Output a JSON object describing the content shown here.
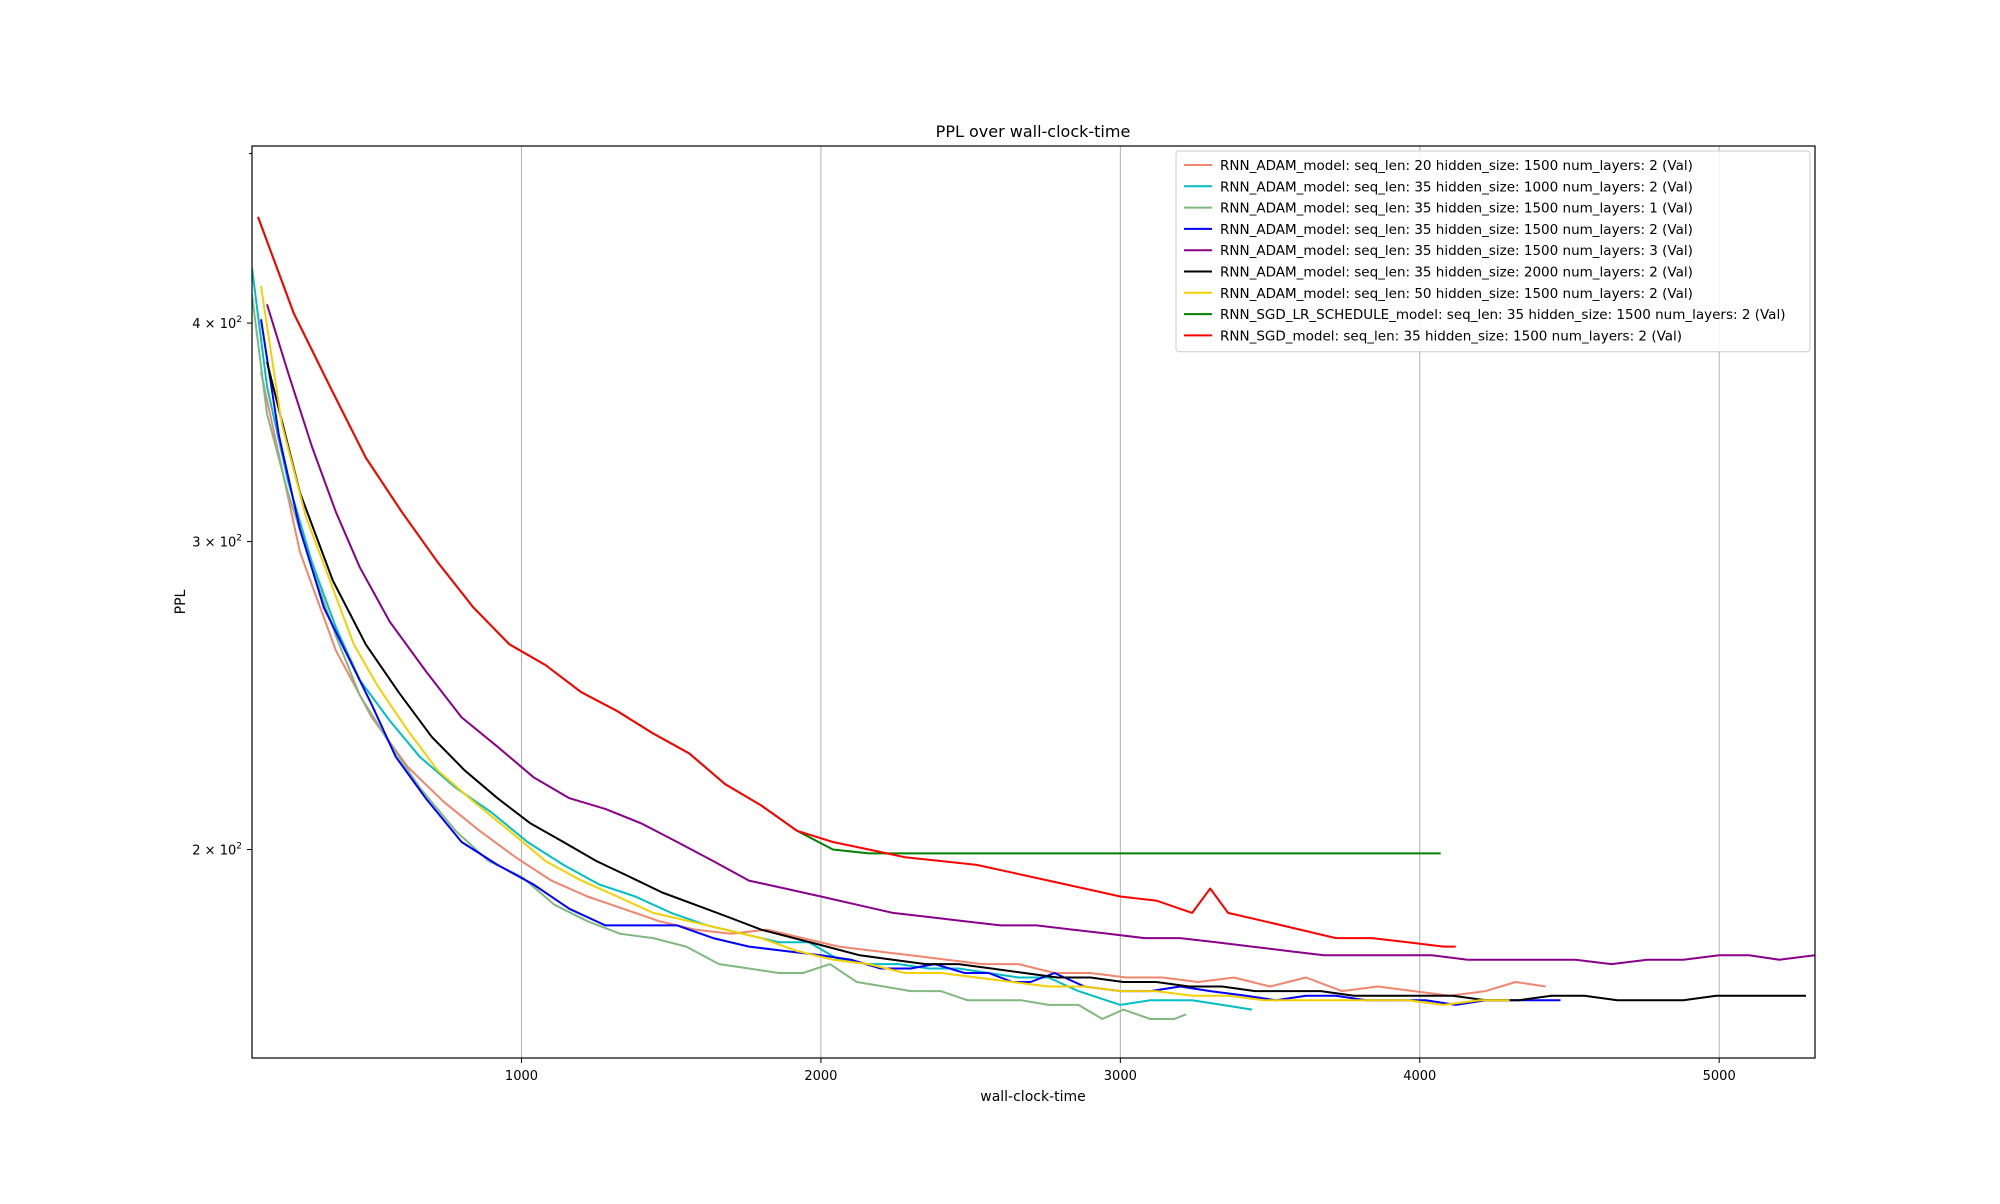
{
  "chart_data": {
    "type": "line",
    "title": "PPL over wall-clock-time",
    "xlabel": "wall-clock-time",
    "ylabel": "PPL",
    "xlim": [
      100,
      5320
    ],
    "ylim": [
      152,
      505
    ],
    "yscale": "log",
    "grid": "x-major vertical lines",
    "legend_position": "top-right",
    "x_ticks": [
      1000,
      2000,
      3000,
      4000,
      5000
    ],
    "x_tick_labels": [
      "1000",
      "2000",
      "3000",
      "4000",
      "5000"
    ],
    "y_ticks": [
      200,
      300,
      400
    ],
    "y_tick_bases": [
      "2 × 10",
      "3 × 10",
      "4 × 10"
    ],
    "y_tick_exponents": [
      "2",
      "2",
      "2"
    ],
    "series": [
      {
        "name": "RNN_ADAM_model: seq_len: 20 hidden_size: 1500 num_layers: 2 (Val)",
        "color": "#f0866e",
        "x": [
          130,
          260,
          380,
          500,
          620,
          740,
          860,
          980,
          1100,
          1220,
          1340,
          1460,
          1580,
          1700,
          1820,
          1940,
          2060,
          2180,
          2300,
          2420,
          2540,
          2660,
          2780,
          2900,
          3020,
          3140,
          3260,
          3380,
          3500,
          3620,
          3740,
          3860,
          3980,
          4100,
          4220,
          4320,
          4420
        ],
        "y": [
          375,
          296,
          260,
          238,
          223,
          213,
          205,
          198,
          192,
          188,
          185,
          182,
          180,
          179,
          180,
          178,
          176,
          175,
          174,
          173,
          172,
          172,
          170,
          170,
          169,
          169,
          168,
          169,
          167,
          169,
          166,
          167,
          166,
          165,
          166,
          168,
          167
        ]
      },
      {
        "name": "RNN_ADAM_model: seq_len: 35 hidden_size: 1000 num_layers: 2 (Val)",
        "color": "#00bfc4",
        "x": [
          100,
          150,
          220,
          300,
          380,
          460,
          560,
          660,
          780,
          900,
          1020,
          1140,
          1260,
          1380,
          1500,
          1620,
          1740,
          1860,
          1960,
          2060,
          2160,
          2260,
          2360,
          2460,
          2560,
          2660,
          2760,
          2860,
          3000,
          3100,
          3240,
          3340,
          3440
        ],
        "y": [
          430,
          368,
          325,
          292,
          268,
          250,
          237,
          226,
          217,
          210,
          202,
          196,
          191,
          188,
          184,
          181,
          179,
          177,
          177,
          173,
          172,
          172,
          171,
          171,
          170,
          169,
          169,
          166,
          163,
          164,
          164,
          163,
          162
        ]
      },
      {
        "name": "RNN_ADAM_model: seq_len: 35 hidden_size: 1500 num_layers: 1 (Val)",
        "color": "#80b980",
        "x": [
          100,
          150,
          220,
          300,
          380,
          460,
          560,
          660,
          780,
          890,
          1000,
          1110,
          1220,
          1330,
          1440,
          1550,
          1660,
          1760,
          1860,
          1940,
          2030,
          2120,
          2210,
          2300,
          2400,
          2490,
          2580,
          2670,
          2760,
          2860,
          2940,
          3010,
          3100,
          3180,
          3220
        ],
        "y": [
          415,
          355,
          320,
          290,
          265,
          245,
          230,
          217,
          205,
          197,
          193,
          186,
          182,
          179,
          178,
          176,
          172,
          171,
          170,
          170,
          172,
          168,
          167,
          166,
          166,
          164,
          164,
          164,
          163,
          163,
          160,
          162,
          160,
          160,
          161
        ]
      },
      {
        "name": "RNN_ADAM_model: seq_len: 35 hidden_size: 1500 num_layers: 2 (Val)",
        "color": "#0000ff",
        "x": [
          130,
          190,
          260,
          340,
          420,
          500,
          580,
          680,
          800,
          920,
          1040,
          1160,
          1280,
          1400,
          1520,
          1640,
          1760,
          1880,
          2000,
          2100,
          2200,
          2300,
          2380,
          2480,
          2560,
          2640,
          2700,
          2780,
          2880,
          3000,
          3100,
          3200,
          3300,
          3420,
          3520,
          3620,
          3720,
          3820,
          3920,
          4020,
          4120,
          4220,
          4320,
          4470
        ],
        "y": [
          402,
          345,
          305,
          275,
          258,
          242,
          226,
          214,
          202,
          196,
          191,
          185,
          181,
          181,
          181,
          178,
          176,
          175,
          174,
          173,
          171,
          171,
          172,
          170,
          170,
          168,
          168,
          170,
          167,
          166,
          166,
          167,
          166,
          165,
          164,
          165,
          165,
          164,
          164,
          164,
          163,
          164,
          164,
          164
        ]
      },
      {
        "name": "RNN_ADAM_model: seq_len: 35 hidden_size: 1500 num_layers: 3 (Val)",
        "color": "#8b008b",
        "x": [
          150,
          220,
          300,
          380,
          460,
          560,
          680,
          800,
          920,
          1040,
          1160,
          1280,
          1400,
          1520,
          1640,
          1760,
          1880,
          2000,
          2120,
          2240,
          2360,
          2480,
          2600,
          2720,
          2840,
          2960,
          3080,
          3200,
          3320,
          3440,
          3560,
          3680,
          3800,
          3920,
          4040,
          4160,
          4280,
          4400,
          4520,
          4640,
          4760,
          4880,
          5000,
          5100,
          5200,
          5320
        ],
        "y": [
          410,
          375,
          340,
          312,
          290,
          270,
          253,
          238,
          229,
          220,
          214,
          211,
          207,
          202,
          197,
          192,
          190,
          188,
          186,
          184,
          183,
          182,
          181,
          181,
          180,
          179,
          178,
          178,
          177,
          176,
          175,
          174,
          174,
          174,
          174,
          173,
          173,
          173,
          173,
          172,
          173,
          173,
          174,
          174,
          173,
          174
        ]
      },
      {
        "name": "RNN_ADAM_model: seq_len: 35 hidden_size: 2000 num_layers: 2 (Val)",
        "color": "#000000",
        "x": [
          150,
          260,
          370,
          480,
          590,
          700,
          810,
          920,
          1030,
          1140,
          1250,
          1360,
          1470,
          1580,
          1690,
          1800,
          1910,
          2020,
          2130,
          2240,
          2350,
          2460,
          2570,
          2680,
          2790,
          2900,
          3010,
          3120,
          3230,
          3340,
          3450,
          3560,
          3670,
          3780,
          3890,
          4000,
          4110,
          4220,
          4330,
          4440,
          4550,
          4660,
          4770,
          4880,
          4990,
          5100,
          5200,
          5290
        ],
        "y": [
          380,
          320,
          285,
          262,
          246,
          232,
          222,
          214,
          207,
          202,
          197,
          193,
          189,
          186,
          183,
          180,
          178,
          176,
          174,
          173,
          172,
          172,
          171,
          170,
          169,
          169,
          168,
          168,
          167,
          167,
          166,
          166,
          166,
          165,
          165,
          165,
          165,
          164,
          164,
          165,
          165,
          164,
          164,
          164,
          165,
          165,
          165,
          165
        ]
      },
      {
        "name": "RNN_ADAM_model: seq_len: 50 hidden_size: 1500 num_layers: 2 (Val)",
        "color": "#f5d000",
        "x": [
          130,
          200,
          280,
          360,
          440,
          520,
          620,
          720,
          840,
          960,
          1080,
          1200,
          1320,
          1440,
          1560,
          1680,
          1800,
          1920,
          2040,
          2160,
          2280,
          2400,
          2520,
          2640,
          2760,
          2880,
          3000,
          3120,
          3240,
          3360,
          3480,
          3600,
          3720,
          3840,
          3960,
          4080,
          4200,
          4300
        ],
        "y": [
          420,
          350,
          310,
          285,
          262,
          248,
          234,
          222,
          213,
          205,
          197,
          192,
          188,
          184,
          182,
          180,
          178,
          175,
          173,
          172,
          170,
          170,
          169,
          168,
          167,
          167,
          166,
          166,
          165,
          165,
          164,
          164,
          164,
          164,
          164,
          163,
          164,
          164
        ]
      },
      {
        "name": "RNN_SGD_LR_SCHEDULE_model: seq_len: 35 hidden_size: 1500 num_layers: 2 (Val)",
        "color": "#008000",
        "x": [
          120,
          240,
          360,
          480,
          600,
          720,
          840,
          960,
          1080,
          1200,
          1320,
          1440,
          1560,
          1680,
          1800,
          1920,
          2040,
          2160,
          2280,
          2400,
          2520,
          2640,
          2760,
          2880,
          3000,
          3120,
          3240,
          3360,
          3480,
          3600,
          3720,
          3840,
          3960,
          4070
        ],
        "y": [
          460,
          405,
          368,
          335,
          312,
          292,
          275,
          262,
          255,
          246,
          240,
          233,
          227,
          218,
          212,
          205,
          200,
          199,
          199,
          199,
          199,
          199,
          199,
          199,
          199,
          199,
          199,
          199,
          199,
          199,
          199,
          199,
          199,
          199
        ]
      },
      {
        "name": "RNN_SGD_model: seq_len: 35 hidden_size: 1500 num_layers: 2 (Val)",
        "color": "#ff0000",
        "x": [
          120,
          240,
          360,
          480,
          600,
          720,
          840,
          960,
          1080,
          1200,
          1320,
          1440,
          1560,
          1680,
          1800,
          1920,
          2040,
          2160,
          2280,
          2400,
          2520,
          2640,
          2760,
          2880,
          3000,
          3120,
          3240,
          3300,
          3360,
          3480,
          3600,
          3720,
          3840,
          3960,
          4080,
          4120
        ],
        "y": [
          460,
          405,
          368,
          335,
          312,
          292,
          275,
          262,
          255,
          246,
          240,
          233,
          227,
          218,
          212,
          205,
          202,
          200,
          198,
          197,
          196,
          194,
          192,
          190,
          188,
          187,
          184,
          190,
          184,
          182,
          180,
          178,
          178,
          177,
          176,
          176
        ]
      }
    ]
  }
}
